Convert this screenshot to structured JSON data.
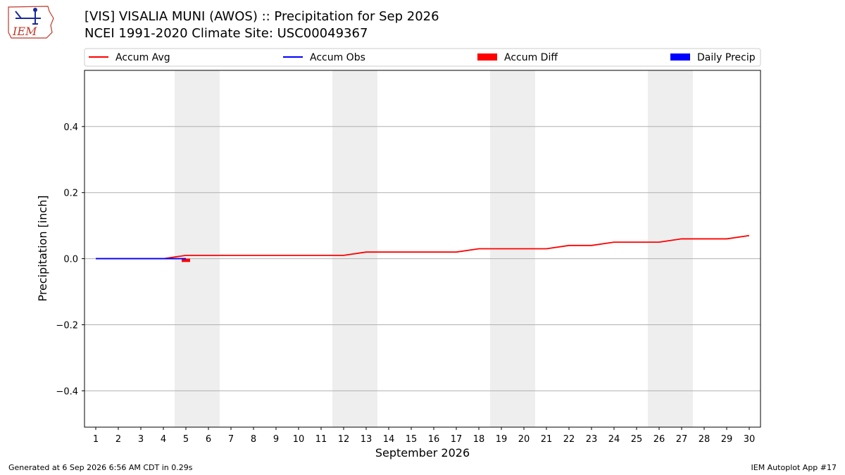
{
  "header": {
    "title_line1": "[VIS] VISALIA MUNI (AWOS) :: Precipitation for Sep 2026",
    "title_line2": "NCEI 1991-2020 Climate Site: USC00049367"
  },
  "logo": {
    "text": "IEM"
  },
  "footer": {
    "left": "Generated at 6 Sep 2026 6:56 AM CDT in 0.29s",
    "right": "IEM Autoplot App #17"
  },
  "colors": {
    "accum_avg": "#ff0000",
    "accum_obs": "#0000ff",
    "accum_diff": "#ff0000",
    "daily_precip": "#0000ff",
    "weekend_shade": "#eeeeee",
    "grid": "#b0b0b0"
  },
  "chart_data": {
    "type": "line",
    "xlabel": "September 2026",
    "ylabel": "Precipitation [inch]",
    "x": [
      1,
      2,
      3,
      4,
      5,
      6,
      7,
      8,
      9,
      10,
      11,
      12,
      13,
      14,
      15,
      16,
      17,
      18,
      19,
      20,
      21,
      22,
      23,
      24,
      25,
      26,
      27,
      28,
      29,
      30
    ],
    "xlim": [
      0.5,
      30.5
    ],
    "ylim": [
      -0.51,
      0.57
    ],
    "yticks": [
      0.4,
      0.2,
      0.0,
      -0.2,
      -0.4
    ],
    "ytick_labels": [
      "0.4",
      "0.2",
      "0.0",
      "−0.2",
      "−0.4"
    ],
    "grid": true,
    "legend_position": "top",
    "legend": [
      {
        "label": "Accum Avg",
        "kind": "line",
        "color": "#ff0000"
      },
      {
        "label": "Accum Obs",
        "kind": "line",
        "color": "#0000ff"
      },
      {
        "label": "Accum Diff",
        "kind": "patch",
        "color": "#ff0000"
      },
      {
        "label": "Daily Precip",
        "kind": "patch",
        "color": "#0000ff"
      }
    ],
    "weekend_ranges": [
      [
        4.5,
        6.5
      ],
      [
        11.5,
        13.5
      ],
      [
        18.5,
        20.5
      ],
      [
        25.5,
        27.5
      ]
    ],
    "series": [
      {
        "name": "Accum Avg",
        "kind": "line",
        "color": "#ff0000",
        "x": [
          1,
          2,
          3,
          4,
          5,
          6,
          7,
          8,
          9,
          10,
          11,
          12,
          13,
          14,
          15,
          16,
          17,
          18,
          19,
          20,
          21,
          22,
          23,
          24,
          25,
          26,
          27,
          28,
          29,
          30
        ],
        "values": [
          0.0,
          0.0,
          0.0,
          0.0,
          0.01,
          0.01,
          0.01,
          0.01,
          0.01,
          0.01,
          0.01,
          0.01,
          0.02,
          0.02,
          0.02,
          0.02,
          0.02,
          0.03,
          0.03,
          0.03,
          0.03,
          0.04,
          0.04,
          0.05,
          0.05,
          0.05,
          0.06,
          0.06,
          0.06,
          0.07
        ]
      },
      {
        "name": "Accum Obs",
        "kind": "line",
        "color": "#0000ff",
        "x": [
          1,
          2,
          3,
          4,
          5
        ],
        "values": [
          0.0,
          0.0,
          0.0,
          0.0,
          0.0
        ]
      },
      {
        "name": "Accum Diff",
        "kind": "bar",
        "color": "#ff0000",
        "x": [
          5
        ],
        "values": [
          -0.01
        ]
      },
      {
        "name": "Daily Precip",
        "kind": "bar",
        "color": "#0000ff",
        "x": [
          5
        ],
        "values": [
          0.0
        ]
      }
    ]
  }
}
